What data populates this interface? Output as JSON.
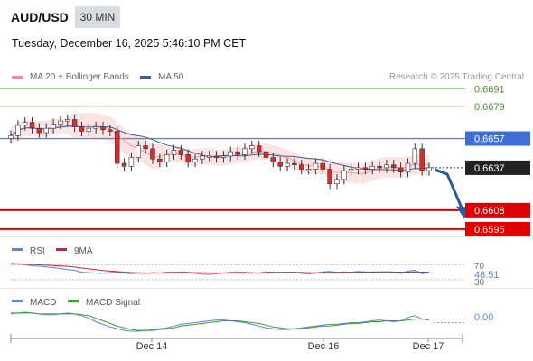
{
  "header": {
    "pair": "AUD/USD",
    "timeframe": "30 MIN",
    "timestamp": "Tuesday, December 16, 2025 5:46:10 PM CET"
  },
  "legend": {
    "ma20_label": "MA 20 + Bollinger Bands",
    "ma50_label": "MA 50",
    "research": "Research © 2025 Trading Central"
  },
  "colors": {
    "resistance": "#9bd07f",
    "support": "#dd0000",
    "pivot": "#5b82e0",
    "ma20": "#f4a5a5",
    "ma50": "#3d5f97",
    "band": "#fde4e4",
    "arrow": "#2a5aa0",
    "rsi": "#5b82e0",
    "rsi_ma": "#cc2233",
    "macd": "#5b82e0",
    "macd_signal": "#3aa02a",
    "up_candle": "#ffffff",
    "down_candle": "#e02828"
  },
  "chart_data": {
    "type": "candlestick",
    "title": "AUD/USD 30 MIN",
    "price_ylim": [
      0.659,
      0.6695
    ],
    "levels": [
      {
        "value": 0.6691,
        "label": "0.6691",
        "kind": "resistance"
      },
      {
        "value": 0.6679,
        "label": "0.6679",
        "kind": "resistance"
      },
      {
        "value": 0.6657,
        "label": "0.6657",
        "kind": "pivot"
      },
      {
        "value": 0.6637,
        "label": "0.6637",
        "kind": "last"
      },
      {
        "value": 0.6608,
        "label": "0.6608",
        "kind": "support"
      },
      {
        "value": 0.6595,
        "label": "0.6595",
        "kind": "support"
      }
    ],
    "price_series_approx": [
      0.6659,
      0.6666,
      0.6668,
      0.6664,
      0.6661,
      0.6664,
      0.6667,
      0.6669,
      0.667,
      0.6665,
      0.6662,
      0.6664,
      0.6665,
      0.6663,
      0.6662,
      0.664,
      0.6638,
      0.6644,
      0.6652,
      0.665,
      0.6643,
      0.6641,
      0.6646,
      0.6649,
      0.6646,
      0.6641,
      0.6643,
      0.6645,
      0.6645,
      0.6644,
      0.6645,
      0.6648,
      0.6646,
      0.665,
      0.6652,
      0.6648,
      0.6644,
      0.6641,
      0.6638,
      0.664,
      0.6639,
      0.6636,
      0.6636,
      0.664,
      0.6636,
      0.6626,
      0.6629,
      0.6635,
      0.6636,
      0.6637,
      0.6636,
      0.6638,
      0.6637,
      0.6639,
      0.6637,
      0.6634,
      0.664,
      0.665,
      0.6635,
      0.6637
    ],
    "arrow": {
      "from": 0.6637,
      "to": 0.6602
    },
    "x_ticks": [
      "Dec 14",
      "Dec 16",
      "Dec 17"
    ],
    "rsi": {
      "label": "RSI",
      "ma_label": "9MA",
      "levels": [
        "70",
        "30"
      ],
      "value": "48.51",
      "series_approx": [
        73,
        72,
        70,
        67,
        66,
        64,
        62,
        60,
        57,
        55,
        50,
        49,
        48,
        47,
        49,
        50,
        48,
        46,
        48,
        47,
        49,
        48,
        50,
        50,
        51,
        50,
        47,
        45,
        44,
        46,
        48,
        50,
        51,
        50,
        49,
        48,
        51,
        50,
        49,
        50,
        50,
        47,
        45,
        48,
        51,
        52,
        50,
        51,
        50,
        52,
        51,
        49,
        50,
        51,
        50,
        47,
        53,
        55,
        46,
        49
      ]
    },
    "macd": {
      "label": "MACD",
      "signal_label": "MACD Signal",
      "value": "0.00",
      "series_approx": [
        0.001,
        0.0011,
        0.0012,
        0.0011,
        0.001,
        0.0009,
        0.0009,
        0.001,
        0.0011,
        0.001,
        0.0008,
        0.0005,
        0.0001,
        -0.0002,
        -0.0005,
        -0.0007,
        -0.0009,
        -0.001,
        -0.001,
        -0.0009,
        -0.0008,
        -0.0007,
        -0.0006,
        -0.0004,
        -0.0002,
        -0.0001,
        0.0,
        0.0001,
        0.0002,
        0.0003,
        0.0003,
        0.0002,
        0.0001,
        0.0,
        -0.0002,
        -0.0004,
        -0.0006,
        -0.0007,
        -0.0008,
        -0.0008,
        -0.0007,
        -0.0006,
        -0.0005,
        -0.0004,
        -0.0003,
        -0.0002,
        -0.0002,
        -0.0001,
        0.0,
        0.0,
        0.0001,
        0.0002,
        0.0003,
        0.0002,
        0.0001,
        0.0002,
        0.0006,
        0.0008,
        0.0004,
        0.0003
      ],
      "signal_series_approx": [
        0.0011,
        0.0011,
        0.0011,
        0.0011,
        0.001,
        0.001,
        0.001,
        0.001,
        0.001,
        0.001,
        0.0009,
        0.0008,
        0.0005,
        0.0002,
        -0.0001,
        -0.0004,
        -0.0006,
        -0.0008,
        -0.0009,
        -0.0009,
        -0.0009,
        -0.0008,
        -0.0007,
        -0.0006,
        -0.0004,
        -0.0003,
        -0.0002,
        -0.0001,
        0.0,
        0.0001,
        0.0002,
        0.0002,
        0.0002,
        0.0001,
        0.0,
        -0.0001,
        -0.0003,
        -0.0005,
        -0.0006,
        -0.0007,
        -0.0007,
        -0.0007,
        -0.0006,
        -0.0005,
        -0.0004,
        -0.0004,
        -0.0003,
        -0.0002,
        -0.0001,
        -0.0001,
        0.0,
        0.0001,
        0.0001,
        0.0002,
        0.0002,
        0.0002,
        0.0003,
        0.0004,
        0.0004,
        0.0004
      ]
    }
  }
}
